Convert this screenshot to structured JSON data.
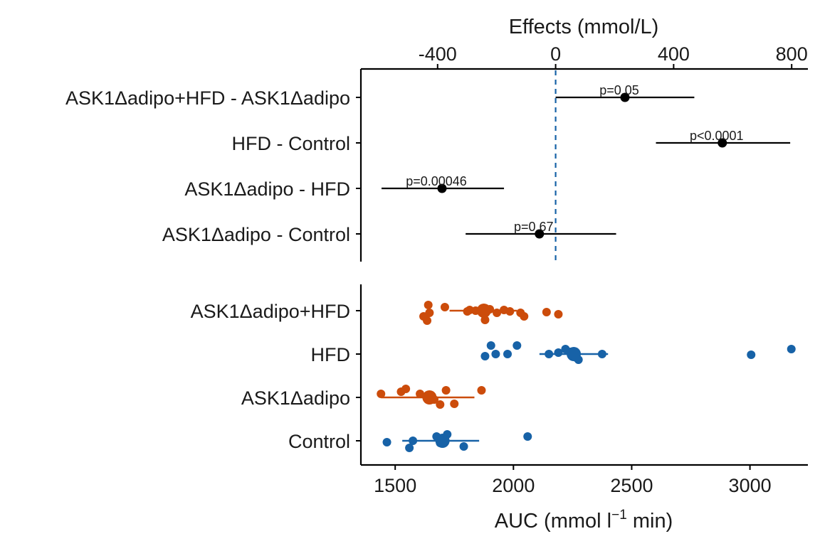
{
  "chart_data": [
    {
      "type": "forest",
      "xlabel": "Effects (mmol/L)",
      "axis_position": "top",
      "xlim": [
        -660,
        855
      ],
      "xticks": [
        -400,
        0,
        400,
        800
      ],
      "xtick_labels": [
        "-400",
        "0",
        "400",
        "800"
      ],
      "reference_line": 0,
      "rows": [
        {
          "label": "ASK1Δadipo+HFD - ASK1Δadipo",
          "estimate": 235,
          "ci": [
            0,
            470
          ],
          "p_label": "p=0.05"
        },
        {
          "label": "HFD - Control",
          "estimate": 565,
          "ci": [
            340,
            795
          ],
          "p_label": "p<0.0001"
        },
        {
          "label": "ASK1Δadipo - HFD",
          "estimate": -385,
          "ci": [
            -590,
            -175
          ],
          "p_label": "p=0.00046"
        },
        {
          "label": "ASK1Δadipo - Control",
          "estimate": -55,
          "ci": [
            -305,
            205
          ],
          "p_label": "p=0.67"
        }
      ]
    },
    {
      "type": "scatter",
      "xlabel": "AUC (mmol l",
      "xlabel_sup": "−1",
      "xlabel_end": " min)",
      "xlim": [
        1355,
        3245
      ],
      "xticks": [
        1500,
        2000,
        2500,
        3000
      ],
      "xtick_labels": [
        "1500",
        "2000",
        "2500",
        "3000"
      ],
      "categories": [
        "ASK1Δadipo+HFD",
        "HFD",
        "ASK1Δadipo",
        "Control"
      ],
      "colors": {
        "ASK1Δadipo+HFD": "#cc4c0b",
        "HFD": "#1762a7",
        "ASK1Δadipo": "#cc4c0b",
        "Control": "#1762a7"
      },
      "groups": [
        {
          "name": "ASK1Δadipo+HFD",
          "mean": 1875,
          "range": [
            1730,
            2015
          ],
          "points": [
            [
              1640,
              -8
            ],
            [
              1645,
              3
            ],
            [
              1635,
              14
            ],
            [
              1710,
              -5
            ],
            [
              1805,
              1
            ],
            [
              1815,
              -1
            ],
            [
              1840,
              0
            ],
            [
              1880,
              13
            ],
            [
              1900,
              -2
            ],
            [
              1930,
              3
            ],
            [
              1960,
              -1
            ],
            [
              1985,
              1
            ],
            [
              2030,
              3
            ],
            [
              2045,
              8
            ],
            [
              2140,
              2
            ],
            [
              2190,
              5
            ],
            [
              1620,
              8
            ]
          ]
        },
        {
          "name": "HFD",
          "mean": 2255,
          "range": [
            2110,
            2400
          ],
          "points": [
            [
              1905,
              -12
            ],
            [
              1925,
              0
            ],
            [
              1880,
              3
            ],
            [
              1975,
              0
            ],
            [
              2015,
              -12
            ],
            [
              2150,
              0
            ],
            [
              2190,
              -2
            ],
            [
              2220,
              -7
            ],
            [
              2240,
              -3
            ],
            [
              2255,
              -1
            ],
            [
              2265,
              5
            ],
            [
              2275,
              8
            ],
            [
              2375,
              0
            ],
            [
              3005,
              1
            ],
            [
              3175,
              -7
            ]
          ]
        },
        {
          "name": "ASK1Δadipo",
          "mean": 1645,
          "range": [
            1440,
            1835
          ],
          "points": [
            [
              1440,
              -5
            ],
            [
              1525,
              -8
            ],
            [
              1545,
              -12
            ],
            [
              1605,
              -5
            ],
            [
              1650,
              -1
            ],
            [
              1665,
              3
            ],
            [
              1690,
              10
            ],
            [
              1715,
              -10
            ],
            [
              1750,
              9
            ],
            [
              1865,
              -10
            ],
            [
              1655,
              -2
            ]
          ]
        },
        {
          "name": "Control",
          "mean": 1700,
          "range": [
            1530,
            1855
          ],
          "points": [
            [
              1465,
              2
            ],
            [
              1560,
              10
            ],
            [
              1575,
              0
            ],
            [
              1675,
              -6
            ],
            [
              1690,
              3
            ],
            [
              1700,
              -2
            ],
            [
              1710,
              0
            ],
            [
              1720,
              -9
            ],
            [
              1790,
              8
            ],
            [
              2060,
              -6
            ],
            [
              1705,
              1
            ]
          ]
        }
      ]
    }
  ]
}
